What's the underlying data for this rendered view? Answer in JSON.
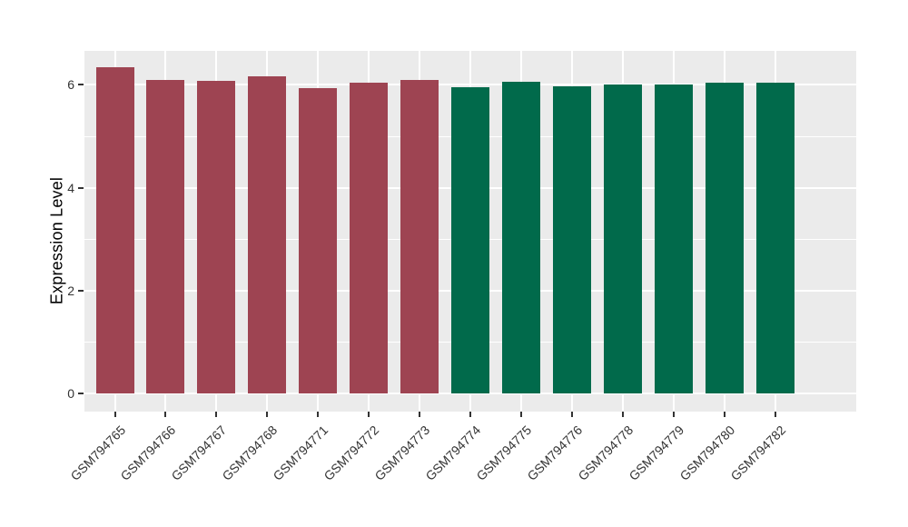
{
  "figure": {
    "background": "#ffffff",
    "panel_background": "#ebebeb",
    "gridline_color": "#ffffff",
    "axis_text_color": "#333333",
    "axis_title_color": "#000000",
    "tick_color": "#333333"
  },
  "chart_data": {
    "type": "bar",
    "title": "",
    "xlabel": "",
    "ylabel": "Expression Level",
    "legend": "none",
    "grid": "major+minor",
    "categories": [
      "GSM794765",
      "GSM794766",
      "GSM794767",
      "GSM794768",
      "GSM794771",
      "GSM794772",
      "GSM794773",
      "GSM794774",
      "GSM794775",
      "GSM794776",
      "GSM794778",
      "GSM794779",
      "GSM794780",
      "GSM794782"
    ],
    "values": [
      6.35,
      6.1,
      6.07,
      6.17,
      5.94,
      6.05,
      6.1,
      5.96,
      6.06,
      5.97,
      6.01,
      6.01,
      6.04,
      6.05
    ],
    "bar_colors": [
      "#9e4452",
      "#9e4452",
      "#9e4452",
      "#9e4452",
      "#9e4452",
      "#9e4452",
      "#9e4452",
      "#016a4b",
      "#016a4b",
      "#016a4b",
      "#016a4b",
      "#016a4b",
      "#016a4b",
      "#016a4b"
    ],
    "group_colors": {
      "left_group": "#9e4452",
      "right_group": "#016a4b"
    },
    "yticks": [
      0,
      2,
      4,
      6
    ],
    "yticks_minor": [
      1,
      3,
      5
    ],
    "ylim": [
      -0.32,
      6.66
    ]
  }
}
